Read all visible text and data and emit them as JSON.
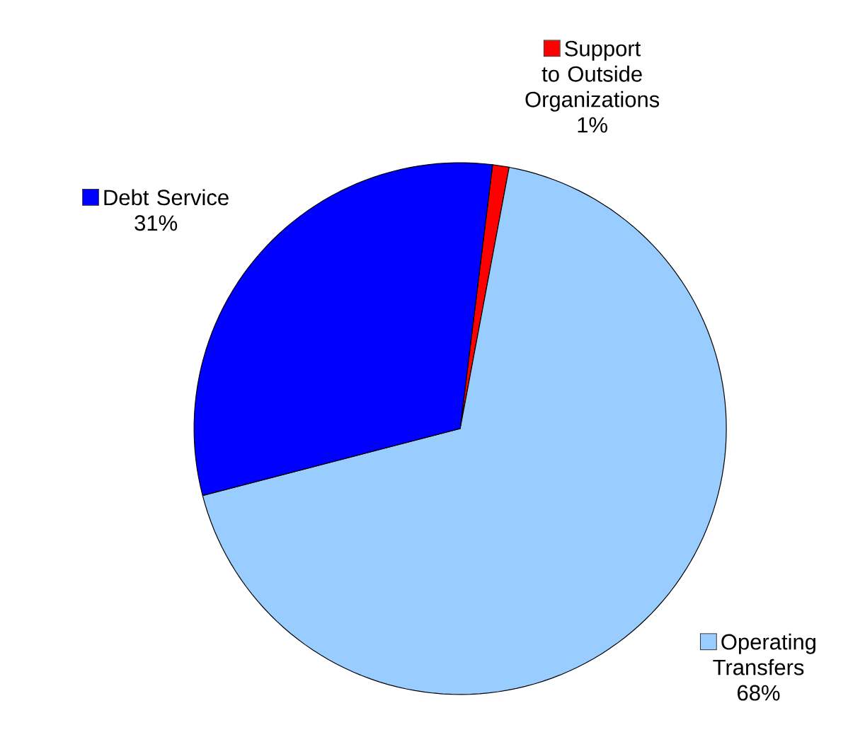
{
  "chart_data": {
    "type": "pie",
    "categories": [
      "Support to Outside Organizations",
      "Operating Transfers",
      "Debt Service"
    ],
    "values": [
      1,
      68,
      31
    ],
    "colors": [
      "#ff0000",
      "#99ccff",
      "#0000ff"
    ],
    "value_labels": [
      "1%",
      "68%",
      "31%"
    ],
    "legend": "right"
  }
}
